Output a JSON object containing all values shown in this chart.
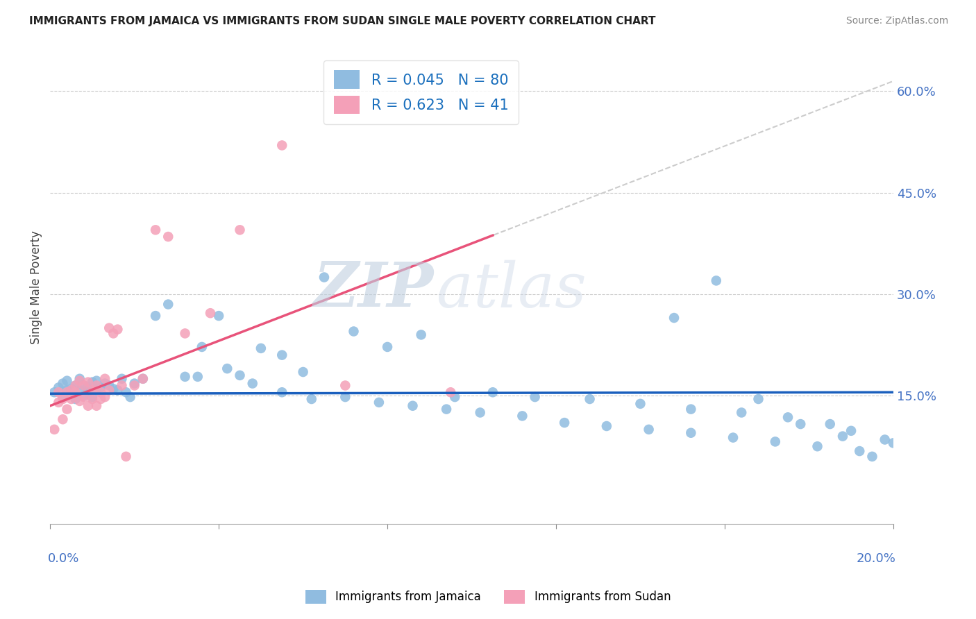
{
  "title": "IMMIGRANTS FROM JAMAICA VS IMMIGRANTS FROM SUDAN SINGLE MALE POVERTY CORRELATION CHART",
  "source": "Source: ZipAtlas.com",
  "ylabel": "Single Male Poverty",
  "right_yticks": [
    "60.0%",
    "45.0%",
    "30.0%",
    "15.0%"
  ],
  "right_ytick_vals": [
    0.6,
    0.45,
    0.3,
    0.15
  ],
  "xmin": 0.0,
  "xmax": 0.2,
  "ymin": -0.04,
  "ymax": 0.66,
  "jamaica_color": "#90bce0",
  "sudan_color": "#f4a0b8",
  "jamaica_line_color": "#1a5fbd",
  "sudan_line_color": "#e8537a",
  "sudan_dash_color": "#cccccc",
  "r_jamaica": 0.045,
  "n_jamaica": 80,
  "r_sudan": 0.623,
  "n_sudan": 41,
  "legend_jamaica": "Immigrants from Jamaica",
  "legend_sudan": "Immigrants from Sudan",
  "sudan_line_x0": 0.0,
  "sudan_line_y0": 0.135,
  "sudan_line_x1": 0.2,
  "sudan_line_y1": 0.615,
  "jamaica_line_x0": 0.0,
  "jamaica_line_y0": 0.153,
  "jamaica_line_x1": 0.2,
  "jamaica_line_y1": 0.155,
  "jamaica_x": [
    0.001,
    0.002,
    0.003,
    0.003,
    0.004,
    0.004,
    0.005,
    0.005,
    0.006,
    0.006,
    0.007,
    0.007,
    0.008,
    0.008,
    0.009,
    0.009,
    0.01,
    0.01,
    0.011,
    0.011,
    0.012,
    0.013,
    0.014,
    0.015,
    0.016,
    0.017,
    0.018,
    0.019,
    0.02,
    0.022,
    0.025,
    0.028,
    0.032,
    0.036,
    0.04,
    0.045,
    0.05,
    0.055,
    0.06,
    0.065,
    0.072,
    0.08,
    0.088,
    0.096,
    0.105,
    0.035,
    0.042,
    0.048,
    0.055,
    0.062,
    0.07,
    0.078,
    0.086,
    0.094,
    0.102,
    0.112,
    0.122,
    0.132,
    0.142,
    0.152,
    0.162,
    0.172,
    0.182,
    0.192,
    0.115,
    0.128,
    0.14,
    0.152,
    0.164,
    0.175,
    0.185,
    0.19,
    0.195,
    0.148,
    0.158,
    0.168,
    0.178,
    0.188,
    0.198,
    0.2
  ],
  "jamaica_y": [
    0.155,
    0.162,
    0.148,
    0.168,
    0.158,
    0.172,
    0.16,
    0.153,
    0.145,
    0.165,
    0.175,
    0.158,
    0.15,
    0.165,
    0.162,
    0.155,
    0.17,
    0.148,
    0.172,
    0.16,
    0.162,
    0.168,
    0.165,
    0.16,
    0.158,
    0.175,
    0.155,
    0.148,
    0.168,
    0.175,
    0.268,
    0.285,
    0.178,
    0.222,
    0.268,
    0.18,
    0.22,
    0.21,
    0.185,
    0.325,
    0.245,
    0.222,
    0.24,
    0.148,
    0.155,
    0.178,
    0.19,
    0.168,
    0.155,
    0.145,
    0.148,
    0.14,
    0.135,
    0.13,
    0.125,
    0.12,
    0.11,
    0.105,
    0.1,
    0.095,
    0.088,
    0.082,
    0.075,
    0.068,
    0.148,
    0.145,
    0.138,
    0.13,
    0.125,
    0.118,
    0.108,
    0.098,
    0.06,
    0.265,
    0.32,
    0.145,
    0.108,
    0.09,
    0.085,
    0.08
  ],
  "sudan_x": [
    0.001,
    0.002,
    0.002,
    0.003,
    0.003,
    0.004,
    0.004,
    0.005,
    0.005,
    0.006,
    0.006,
    0.007,
    0.007,
    0.008,
    0.008,
    0.009,
    0.009,
    0.01,
    0.01,
    0.011,
    0.011,
    0.012,
    0.012,
    0.013,
    0.013,
    0.014,
    0.014,
    0.015,
    0.016,
    0.017,
    0.018,
    0.02,
    0.022,
    0.025,
    0.028,
    0.032,
    0.038,
    0.045,
    0.055,
    0.07,
    0.095
  ],
  "sudan_y": [
    0.1,
    0.14,
    0.155,
    0.145,
    0.115,
    0.155,
    0.13,
    0.158,
    0.145,
    0.165,
    0.155,
    0.172,
    0.142,
    0.165,
    0.148,
    0.17,
    0.135,
    0.158,
    0.145,
    0.165,
    0.135,
    0.155,
    0.145,
    0.175,
    0.148,
    0.158,
    0.25,
    0.242,
    0.248,
    0.165,
    0.06,
    0.165,
    0.175,
    0.395,
    0.385,
    0.242,
    0.272,
    0.395,
    0.52,
    0.165,
    0.155
  ]
}
